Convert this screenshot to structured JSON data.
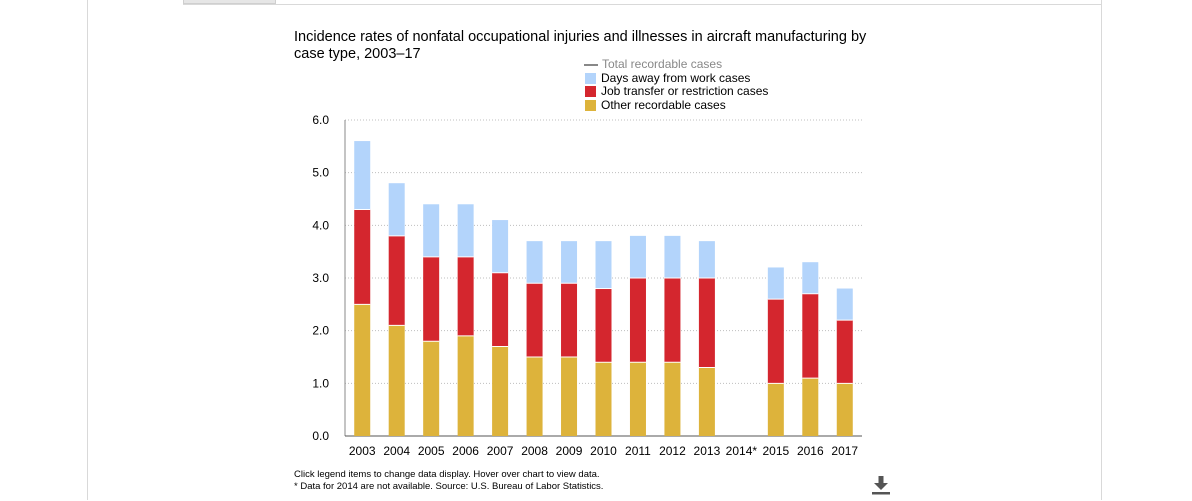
{
  "title": "Incidence rates of nonfatal occupational injuries and illnesses in aircraft manufacturing by case type, 2003–17",
  "legend": {
    "total": "Total recordable cases",
    "days_away": "Days away from work cases",
    "job_transfer": "Job transfer or restriction cases",
    "other": "Other recordable cases"
  },
  "footer": {
    "line1": "Click legend items to change data display. Hover over chart to view data.",
    "line2": "* Data for 2014 are not available. Source: U.S. Bureau of Labor Statistics."
  },
  "colors": {
    "days_away": "#b3d4fb",
    "job_transfer": "#d4262e",
    "other": "#ddb33b",
    "total": "#888888",
    "grid": "#bfbfbf"
  },
  "chart_data": {
    "type": "bar",
    "stacked": true,
    "title": "Incidence rates of nonfatal occupational injuries and illnesses in aircraft manufacturing by case type, 2003–17",
    "categories": [
      "2003",
      "2004",
      "2005",
      "2006",
      "2007",
      "2008",
      "2009",
      "2010",
      "2011",
      "2012",
      "2013",
      "2014*",
      "2015",
      "2016",
      "2017"
    ],
    "series": [
      {
        "name": "Other recordable cases",
        "values": [
          2.5,
          2.1,
          1.8,
          1.9,
          1.7,
          1.5,
          1.5,
          1.4,
          1.4,
          1.4,
          1.3,
          null,
          1.0,
          1.1,
          1.0
        ]
      },
      {
        "name": "Job transfer or restriction cases",
        "values": [
          1.8,
          1.7,
          1.6,
          1.5,
          1.4,
          1.4,
          1.4,
          1.4,
          1.6,
          1.6,
          1.7,
          null,
          1.6,
          1.6,
          1.2
        ]
      },
      {
        "name": "Days away from work cases",
        "values": [
          1.3,
          1.0,
          1.0,
          1.0,
          1.0,
          0.8,
          0.8,
          0.9,
          0.8,
          0.8,
          0.7,
          null,
          0.6,
          0.6,
          0.6
        ]
      }
    ],
    "yticks": [
      "0.0",
      "1.0",
      "2.0",
      "3.0",
      "4.0",
      "5.0",
      "6.0"
    ],
    "ylim": [
      0,
      6
    ],
    "grid": true,
    "legend_position": "top-right"
  }
}
